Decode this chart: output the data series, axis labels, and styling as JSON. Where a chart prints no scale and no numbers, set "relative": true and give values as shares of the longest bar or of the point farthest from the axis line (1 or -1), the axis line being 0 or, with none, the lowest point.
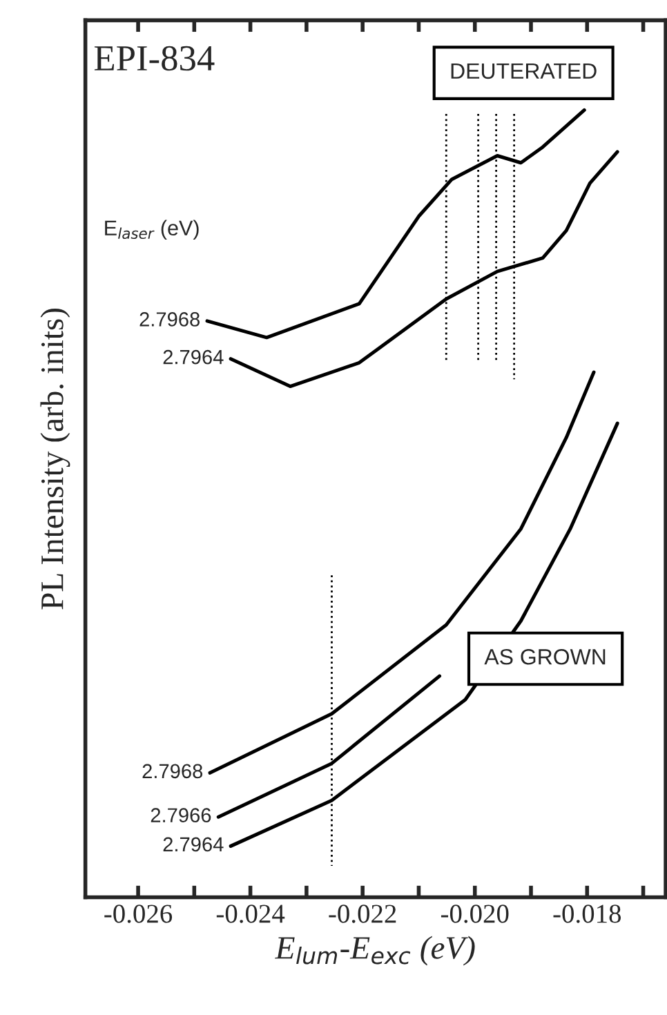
{
  "chart_data": {
    "type": "line",
    "relative": true,
    "xlabel": "E$_{lum}$-E$_{exc}$ (eV)",
    "ylabel": "PL Intensity (arb. inits)",
    "annotations": [
      "EPI-834",
      "DEUTERATED",
      "AS GROWN",
      "E$_{laser}$ (eV)"
    ],
    "xlim": [
      -0.02694,
      -0.0166
    ],
    "xticks": [
      -0.026,
      {
        "value": -0.025,
        "label": null
      },
      -0.024,
      {
        "value": -0.023,
        "label": null
      },
      -0.022,
      {
        "value": -0.021,
        "label": null
      },
      {
        "value": -0.02,
        "label": "-0.020"
      },
      {
        "value": -0.019,
        "label": null
      },
      -0.018,
      {
        "value": -0.017,
        "label": null
      }
    ],
    "grid": false,
    "legend": false,
    "marker": "none",
    "series": [
      {
        "name": "2.7968",
        "color": "#000000",
        "x": [
          -0.02477,
          -0.02371,
          -0.02206,
          -0.021,
          -0.02041,
          -0.0196,
          -0.01918,
          -0.01879,
          -0.01805
        ],
        "values": [
          0.732,
          0.711,
          0.754,
          0.865,
          0.912,
          0.942,
          0.933,
          0.953,
          1.0
        ]
      },
      {
        "name": "2.7964",
        "color": "#000000",
        "x": [
          -0.02435,
          -0.02329,
          -0.02206,
          -0.02051,
          -0.0196,
          -0.01879,
          -0.01837,
          -0.01795,
          -0.01746
        ],
        "values": [
          0.684,
          0.649,
          0.679,
          0.76,
          0.795,
          0.812,
          0.847,
          0.907,
          0.947
        ]
      },
      {
        "name": "2.7968",
        "color": "#000000",
        "x": [
          -0.02472,
          -0.02255,
          -0.02051,
          -0.01918,
          -0.01837,
          -0.01788
        ],
        "values": [
          0.158,
          0.233,
          0.346,
          0.468,
          0.584,
          0.667
        ]
      },
      {
        "name": "2.7966",
        "color": "#000000",
        "x": [
          -0.02457,
          -0.02255,
          -0.02063
        ],
        "values": [
          0.102,
          0.17,
          0.281
        ]
      },
      {
        "name": "2.7964",
        "color": "#000000",
        "x": [
          -0.02435,
          -0.02255,
          -0.02017,
          -0.01918,
          -0.0183,
          -0.01746
        ],
        "values": [
          0.065,
          0.123,
          0.251,
          0.351,
          0.468,
          0.602
        ]
      },
      {
        "type": "line",
        "line_style": "dotted",
        "color": "#000000",
        "x": [
          -0.02051,
          -0.02051
        ],
        "values": [
          0.995,
          0.68
        ]
      },
      {
        "type": "line",
        "line_style": "dotted",
        "color": "#000000",
        "x": [
          -0.01994,
          -0.01994
        ],
        "values": [
          0.995,
          0.68
        ]
      },
      {
        "type": "line",
        "line_style": "dotted",
        "color": "#000000",
        "x": [
          -0.01962,
          -0.01962
        ],
        "values": [
          0.995,
          0.68
        ]
      },
      {
        "type": "line",
        "line_style": "dotted",
        "color": "#000000",
        "x": [
          -0.0193,
          -0.0193
        ],
        "values": [
          0.995,
          0.658
        ]
      },
      {
        "type": "line",
        "line_style": "dotted",
        "color": "#000000",
        "x": [
          -0.02255,
          -0.02255
        ],
        "values": [
          0.409,
          0.04
        ]
      }
    ]
  }
}
